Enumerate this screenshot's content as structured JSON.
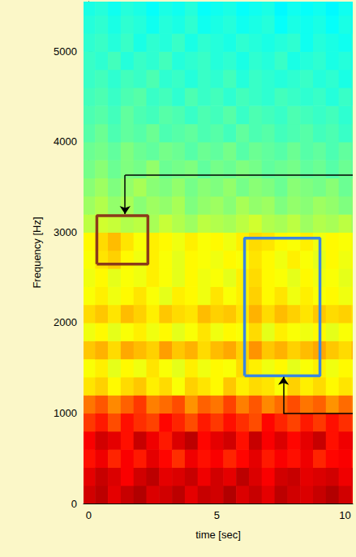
{
  "chart_data": {
    "type": "heatmap",
    "xlabel": "time [sec]",
    "ylabel": "Frequency [Hz]",
    "x": [
      0,
      0.5,
      1,
      1.5,
      2,
      2.5,
      3,
      3.5,
      4,
      4.5,
      5,
      5.5,
      6,
      6.5,
      7,
      7.5,
      8,
      8.5,
      9,
      9.5,
      10,
      10.5
    ],
    "y": [
      100,
      300,
      500,
      700,
      900,
      1100,
      1300,
      1500,
      1700,
      1900,
      2100,
      2300,
      2500,
      2700,
      2900,
      3100,
      3300,
      3500,
      3700,
      3900,
      4100,
      4300,
      4500,
      4700,
      4900,
      5100,
      5300,
      5500
    ],
    "cells": [
      [
        9.2,
        9.4,
        9.0,
        9.3,
        9.5,
        9.1,
        9.2,
        9.4,
        9.0,
        9.3,
        9.2,
        9.5,
        9.1,
        9.3,
        9.0,
        9.4,
        9.2,
        9.1,
        9.3,
        9.5,
        9.2,
        9.0
      ],
      [
        9.0,
        9.3,
        9.1,
        8.8,
        9.2,
        9.4,
        9.0,
        9.1,
        9.3,
        8.9,
        9.2,
        9.0,
        9.4,
        9.1,
        8.8,
        9.2,
        9.3,
        9.0,
        9.1,
        9.2,
        8.9,
        9.1
      ],
      [
        8.6,
        8.9,
        8.4,
        8.8,
        8.5,
        9.0,
        8.7,
        8.3,
        8.9,
        8.6,
        8.8,
        8.4,
        8.7,
        9.0,
        8.5,
        8.8,
        8.6,
        8.9,
        8.4,
        8.7,
        8.8,
        8.5
      ],
      [
        8.8,
        9.2,
        9.0,
        8.6,
        9.3,
        8.9,
        8.5,
        9.1,
        9.4,
        8.7,
        9.0,
        9.2,
        8.6,
        9.3,
        8.8,
        9.1,
        8.7,
        9.0,
        9.3,
        8.6,
        8.9,
        9.0
      ],
      [
        8.2,
        8.5,
        8.0,
        8.6,
        8.3,
        8.1,
        8.7,
        8.4,
        8.0,
        8.5,
        8.2,
        8.6,
        8.3,
        8.0,
        8.7,
        8.4,
        8.1,
        8.5,
        8.2,
        8.6,
        8.3,
        8.1
      ],
      [
        7.6,
        7.9,
        7.4,
        7.8,
        8.2,
        7.5,
        7.7,
        8.0,
        7.3,
        7.8,
        7.6,
        8.1,
        7.5,
        7.9,
        7.4,
        7.7,
        8.0,
        7.6,
        7.8,
        7.3,
        7.7,
        7.5
      ],
      [
        6.5,
        6.7,
        6.3,
        6.6,
        6.8,
        6.4,
        6.6,
        6.2,
        6.7,
        6.5,
        6.3,
        6.8,
        6.4,
        6.6,
        6.5,
        6.2,
        6.7,
        6.4,
        6.6,
        6.3,
        6.5,
        6.4
      ],
      [
        6.2,
        6.4,
        6.0,
        6.3,
        6.1,
        6.5,
        6.2,
        6.0,
        6.4,
        6.1,
        6.3,
        6.2,
        6.6,
        6.4,
        6.1,
        6.3,
        6.0,
        6.2,
        6.4,
        6.1,
        6.3,
        6.2
      ],
      [
        6.8,
        7.0,
        6.6,
        7.1,
        6.9,
        6.7,
        7.2,
        6.8,
        7.0,
        6.6,
        6.9,
        7.1,
        6.7,
        7.3,
        6.8,
        7.0,
        6.7,
        6.9,
        7.1,
        6.8,
        6.6,
        6.9
      ],
      [
        6.1,
        6.3,
        6.0,
        6.2,
        6.4,
        6.1,
        6.3,
        6.0,
        6.2,
        6.5,
        6.1,
        6.3,
        6.2,
        6.6,
        6.0,
        6.4,
        6.2,
        6.1,
        6.3,
        6.0,
        6.2,
        6.1
      ],
      [
        6.6,
        6.8,
        6.5,
        6.9,
        6.7,
        6.4,
        6.8,
        6.6,
        6.5,
        6.9,
        6.7,
        6.8,
        6.5,
        7.0,
        6.6,
        6.9,
        6.7,
        6.5,
        6.8,
        6.6,
        6.7,
        6.5
      ],
      [
        6.2,
        6.4,
        6.1,
        6.3,
        6.5,
        6.2,
        6.0,
        6.4,
        6.3,
        6.1,
        6.5,
        6.2,
        6.4,
        6.7,
        6.3,
        6.5,
        6.1,
        6.4,
        6.2,
        6.3,
        6.1,
        6.2
      ],
      [
        6.1,
        6.3,
        6.0,
        6.2,
        6.1,
        6.4,
        6.2,
        6.0,
        6.3,
        6.1,
        6.2,
        6.0,
        6.4,
        6.6,
        6.3,
        6.2,
        6.0,
        6.3,
        6.1,
        6.2,
        6.0,
        6.1
      ],
      [
        6.2,
        6.5,
        6.7,
        6.3,
        6.1,
        6.4,
        6.2,
        6.0,
        6.3,
        6.2,
        6.1,
        6.3,
        6.2,
        6.5,
        6.3,
        6.1,
        6.4,
        6.2,
        6.0,
        6.3,
        6.1,
        6.2
      ],
      [
        6.3,
        6.6,
        6.9,
        6.5,
        6.2,
        6.4,
        6.3,
        6.1,
        6.4,
        6.2,
        6.3,
        6.1,
        6.4,
        6.6,
        6.5,
        6.3,
        6.2,
        6.4,
        6.1,
        6.3,
        6.2,
        6.1
      ],
      [
        5.6,
        5.8,
        5.7,
        5.5,
        5.6,
        5.4,
        5.7,
        5.5,
        5.3,
        5.6,
        5.5,
        5.4,
        5.6,
        5.8,
        5.5,
        5.4,
        5.6,
        5.3,
        5.5,
        5.4,
        5.6,
        5.3
      ],
      [
        5.3,
        5.5,
        5.2,
        5.4,
        5.1,
        5.3,
        5.2,
        5.4,
        5.0,
        5.2,
        5.3,
        5.1,
        5.4,
        5.2,
        5.3,
        5.0,
        5.2,
        5.1,
        5.3,
        5.2,
        5.0,
        5.1
      ],
      [
        5.1,
        5.3,
        5.0,
        5.2,
        5.4,
        5.1,
        5.0,
        5.2,
        4.9,
        5.1,
        5.0,
        5.2,
        4.9,
        5.1,
        5.0,
        4.8,
        5.1,
        5.0,
        4.9,
        5.1,
        4.8,
        5.0
      ],
      [
        4.9,
        5.1,
        4.8,
        5.0,
        4.9,
        5.2,
        4.8,
        4.9,
        5.0,
        4.7,
        4.9,
        4.8,
        5.0,
        4.9,
        4.7,
        4.8,
        4.9,
        4.7,
        4.8,
        4.6,
        4.8,
        4.7
      ],
      [
        4.8,
        4.9,
        4.7,
        5.0,
        4.8,
        4.7,
        4.9,
        4.8,
        4.6,
        4.8,
        4.7,
        4.9,
        4.6,
        4.8,
        4.7,
        4.6,
        4.8,
        4.6,
        4.7,
        4.5,
        4.7,
        4.6
      ],
      [
        4.6,
        4.8,
        4.5,
        4.7,
        4.6,
        4.8,
        4.5,
        4.6,
        4.7,
        4.5,
        4.6,
        4.4,
        4.7,
        4.5,
        4.6,
        4.4,
        4.5,
        4.6,
        4.4,
        4.5,
        4.3,
        4.5
      ],
      [
        4.5,
        4.6,
        4.4,
        4.7,
        4.5,
        4.4,
        4.6,
        4.5,
        4.3,
        4.5,
        4.4,
        4.6,
        4.3,
        4.5,
        4.4,
        4.3,
        4.5,
        4.4,
        4.3,
        4.4,
        4.2,
        4.4
      ],
      [
        4.4,
        4.5,
        4.3,
        4.5,
        4.6,
        4.3,
        4.4,
        4.2,
        4.5,
        4.3,
        4.4,
        4.2,
        4.4,
        4.3,
        4.2,
        4.4,
        4.3,
        4.2,
        4.3,
        4.1,
        4.3,
        4.2
      ],
      [
        4.3,
        4.4,
        4.2,
        4.4,
        4.3,
        4.5,
        4.2,
        4.3,
        4.1,
        4.3,
        4.2,
        4.4,
        4.1,
        4.3,
        4.2,
        4.1,
        4.2,
        4.3,
        4.1,
        4.2,
        4.0,
        4.2
      ],
      [
        4.3,
        4.2,
        4.4,
        4.1,
        4.3,
        4.2,
        4.4,
        4.1,
        4.2,
        4.3,
        4.1,
        4.2,
        4.0,
        4.2,
        4.1,
        4.3,
        4.0,
        4.1,
        4.2,
        4.0,
        4.1,
        4.0
      ],
      [
        4.2,
        4.3,
        4.1,
        4.3,
        4.0,
        4.2,
        4.1,
        4.3,
        4.0,
        4.2,
        4.1,
        4.0,
        4.2,
        4.1,
        4.0,
        4.1,
        4.2,
        3.9,
        4.1,
        4.0,
        3.9,
        4.1
      ],
      [
        4.1,
        4.2,
        4.0,
        4.2,
        4.1,
        3.9,
        4.1,
        4.0,
        4.2,
        3.9,
        4.0,
        4.1,
        3.9,
        4.0,
        4.1,
        3.8,
        4.0,
        3.9,
        4.0,
        3.8,
        4.0,
        3.9
      ],
      [
        4.0,
        4.1,
        3.9,
        4.1,
        4.0,
        3.8,
        4.0,
        3.9,
        4.1,
        3.8,
        3.9,
        4.0,
        3.8,
        3.9,
        4.0,
        3.7,
        3.9,
        3.8,
        3.9,
        3.7,
        3.9,
        3.8
      ]
    ],
    "value_range": [
      0,
      10
    ],
    "xlim": [
      -0.2,
      10.3
    ],
    "xticks": [
      0,
      5,
      10
    ],
    "ylim": [
      0,
      5550
    ],
    "yticks": [
      0,
      1000,
      2000,
      3000,
      4000,
      5000
    ],
    "annotations": [
      {
        "type": "box",
        "x": [
          0.32,
          2.31
        ],
        "y": [
          2648,
          3184
        ],
        "color": "#8b3a1a"
      },
      {
        "type": "box",
        "x": [
          6.08,
          9.02
        ],
        "y": [
          1413,
          2934
        ],
        "color": "#3a86e0"
      },
      {
        "type": "arrow",
        "path": [
          [
            10.3,
            3631
          ],
          [
            1.42,
            3631
          ],
          [
            1.42,
            3200
          ]
        ],
        "color": "#000000"
      },
      {
        "type": "arrow",
        "path": [
          [
            10.3,
            993
          ],
          [
            7.6,
            993
          ],
          [
            7.6,
            1400
          ]
        ],
        "color": "#000000"
      }
    ]
  }
}
